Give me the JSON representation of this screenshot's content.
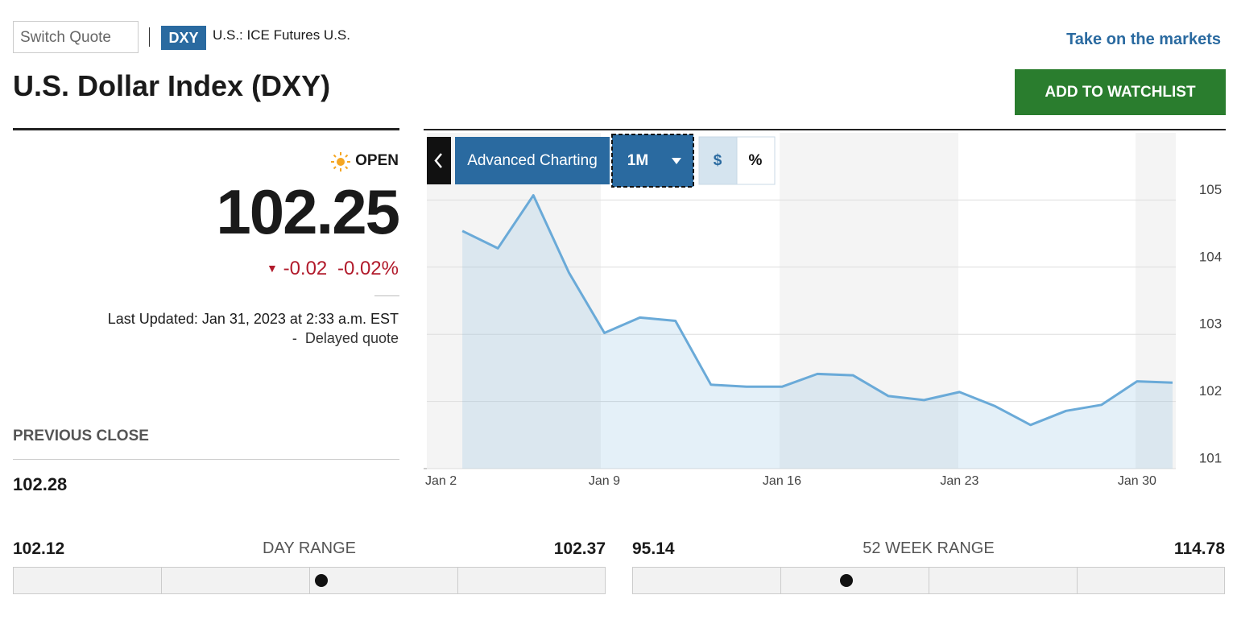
{
  "header": {
    "switch_quote": "Switch Quote",
    "ticker": "DXY",
    "exchange": "U.S.: ICE Futures U.S.",
    "title": "U.S. Dollar Index (DXY)",
    "promo": "Take on the markets",
    "watchlist_button": "ADD TO WATCHLIST"
  },
  "quote": {
    "status": "OPEN",
    "price": "102.25",
    "change": "-0.02",
    "change_percent": "-0.02%",
    "last_updated": "Last Updated: Jan 31, 2023 at 2:33 a.m. EST",
    "delayed": "-  Delayed quote",
    "previous_close_label": "PREVIOUS CLOSE",
    "previous_close": "102.28"
  },
  "ranges": {
    "day": {
      "low": "102.12",
      "label": "DAY RANGE",
      "high": "102.37"
    },
    "week52": {
      "low": "95.14",
      "label": "52 WEEK RANGE",
      "high": "114.78"
    }
  },
  "chart_toolbar": {
    "advanced": "Advanced Charting",
    "period": "1M",
    "dollar": "$",
    "percent": "%"
  },
  "chart_data": {
    "type": "line",
    "categories": [
      "Jan 2",
      null,
      null,
      null,
      null,
      "Jan 9",
      null,
      null,
      null,
      null,
      "Jan 16",
      null,
      null,
      null,
      null,
      "Jan 23",
      null,
      null,
      null,
      null,
      "Jan 30",
      null
    ],
    "values": [
      null,
      104.54,
      104.28,
      105.07,
      103.92,
      103.02,
      103.25,
      103.2,
      102.25,
      102.22,
      102.22,
      102.41,
      102.39,
      102.08,
      102.02,
      102.14,
      101.93,
      101.65,
      101.86,
      101.95,
      102.3,
      102.28
    ],
    "color": "#6aaad8",
    "ylim": [
      101,
      106
    ],
    "yticks": [
      101,
      102,
      103,
      104,
      105
    ],
    "grid": true
  }
}
